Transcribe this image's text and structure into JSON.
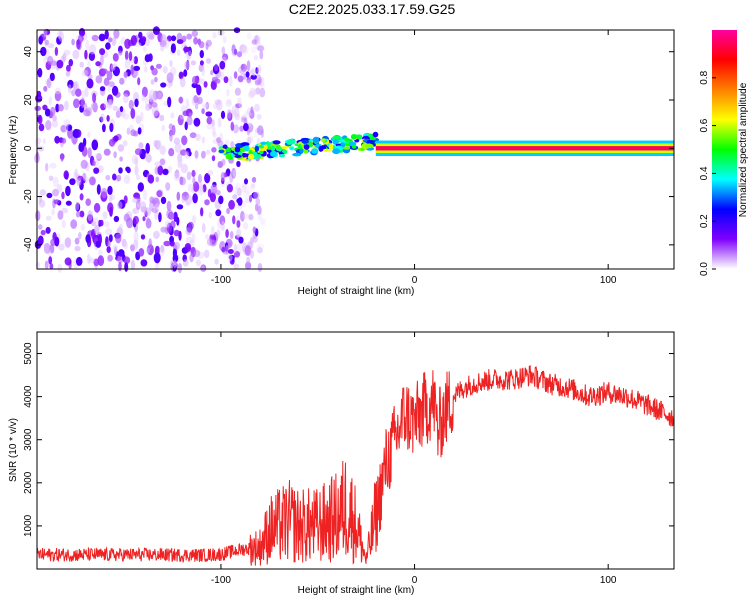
{
  "title": "C2E2.2025.033.17.59.G25",
  "chart_data": [
    {
      "type": "heatmap",
      "xlabel": "Height of straight line (km)",
      "ylabel": "Frequency (Hz)",
      "xlim": [
        -195,
        134
      ],
      "ylim": [
        -50,
        49
      ],
      "x_ticks": [
        -100,
        0,
        100
      ],
      "x_tick_labels": [
        "-100",
        "0",
        "100"
      ],
      "y_ticks": [
        -40,
        -20,
        0,
        20,
        40
      ],
      "y_tick_labels": [
        "-40",
        "-20",
        "0",
        "20",
        "40"
      ],
      "grid": false,
      "colorbar": {
        "label": "Normalized spectral amplitude",
        "range": [
          0,
          1
        ],
        "ticks": [
          0.0,
          0.2,
          0.4,
          0.6,
          0.8
        ],
        "tick_labels": [
          "0.0",
          "0.2",
          "0.4",
          "0.6",
          "0.8"
        ],
        "colormap": [
          "#ffffff",
          "#7f00ff",
          "#0000ff",
          "#00ffff",
          "#00ff00",
          "#ffff00",
          "#ff8000",
          "#ff0000",
          "#ff00a0"
        ]
      },
      "features": [
        {
          "x_range": [
            -195,
            -78
          ],
          "y_range": [
            -50,
            49
          ],
          "amplitude": 0.15,
          "kind": "noise"
        },
        {
          "x_range": [
            -100,
            -20
          ],
          "y_center": 3,
          "y_spread": 6,
          "amplitude": 0.45,
          "kind": "signal"
        },
        {
          "x_range": [
            -20,
            134
          ],
          "y_center": 0,
          "y_spread": 2,
          "amplitude": 0.95,
          "kind": "carrier"
        }
      ]
    },
    {
      "type": "line",
      "xlabel": "Height of straight line (km)",
      "ylabel": "SNR (10 * v/v)",
      "xlim": [
        -195,
        134
      ],
      "ylim": [
        0,
        5500
      ],
      "x_ticks": [
        -100,
        0,
        100
      ],
      "x_tick_labels": [
        "-100",
        "0",
        "100"
      ],
      "y_ticks": [
        1000,
        2000,
        3000,
        4000,
        5000
      ],
      "y_tick_labels": [
        "1000",
        "2000",
        "3000",
        "4000",
        "5000"
      ],
      "grid": false,
      "series": [
        {
          "color": "#ee2222",
          "x": [
            -195,
            -170,
            -140,
            -110,
            -100,
            -90,
            -80,
            -75,
            -70,
            -65,
            -60,
            -55,
            -50,
            -45,
            -40,
            -35,
            -30,
            -25,
            -20,
            -15,
            -10,
            -5,
            0,
            5,
            10,
            12,
            15,
            20,
            25,
            30,
            40,
            50,
            60,
            70,
            80,
            90,
            100,
            110,
            120,
            130,
            134
          ],
          "y": [
            330,
            330,
            330,
            320,
            340,
            450,
            500,
            900,
            1000,
            1100,
            1000,
            1000,
            1000,
            1100,
            1200,
            1500,
            1000,
            200,
            1200,
            2400,
            3000,
            3600,
            3400,
            3700,
            3900,
            3200,
            3600,
            4000,
            4200,
            4300,
            4400,
            4400,
            4500,
            4300,
            4200,
            4000,
            4100,
            4000,
            3800,
            3600,
            3500
          ]
        }
      ]
    }
  ]
}
